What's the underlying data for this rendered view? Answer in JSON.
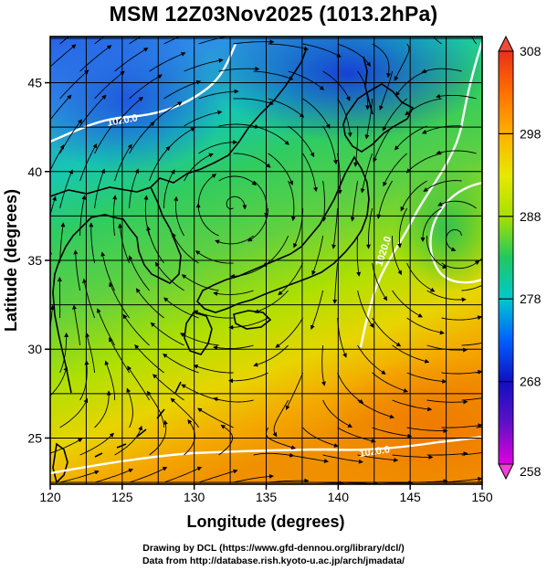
{
  "title": "MSM 12Z03Nov2025 (1013.2hPa)",
  "axes": {
    "x_label": "Longitude (degrees)",
    "y_label": "Latitude  (degrees)",
    "x_ticks": [
      "120",
      "125",
      "130",
      "135",
      "140",
      "145",
      "150"
    ],
    "y_ticks": [
      "25",
      "30",
      "35",
      "40",
      "45"
    ],
    "x_range": [
      120,
      150
    ],
    "y_range": [
      22.4,
      47.6
    ]
  },
  "colorbar": {
    "ticks": [
      "258",
      "268",
      "278",
      "288",
      "298",
      "308"
    ],
    "range": [
      258,
      308
    ],
    "colors": [
      "#e000e0",
      "#1010c0",
      "#0060ff",
      "#00c8d0",
      "#20c860",
      "#a8e000",
      "#e8e800",
      "#ffb000",
      "#ff7000",
      "#e83018"
    ]
  },
  "isobar_labels": [
    "1020.0",
    "1020.0",
    "1020.0"
  ],
  "colors": {
    "land_outline": "#000000",
    "isobar": "#ffffff",
    "streamline": "#000000",
    "grid": "#000000"
  },
  "credits": {
    "line1": "Drawing by DCL (https://www.gfd-dennou.org/library/dcl/)",
    "line2": "Data from http://database.rish.kyoto-u.ac.jp/arch/jmadata/"
  }
}
